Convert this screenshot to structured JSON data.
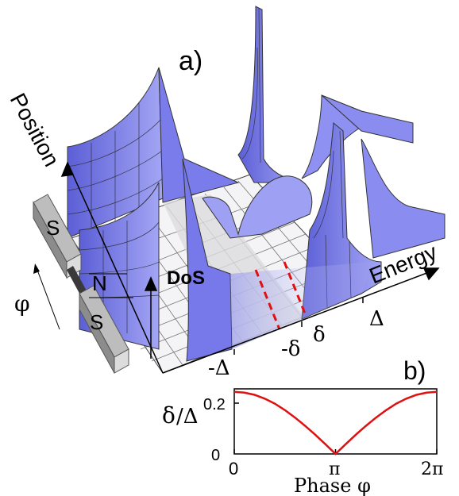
{
  "panel_a": {
    "label": "a)",
    "axis_position": "Position",
    "axis_energy": "Energy",
    "axis_dos": "DoS",
    "energy_ticks": [
      "-Δ",
      "-δ",
      "δ",
      "Δ"
    ],
    "device": {
      "top": "S",
      "middle": "N",
      "bottom": "S",
      "phase": "φ"
    }
  },
  "panel_b": {
    "label": "b)",
    "ylabel_num": "δ",
    "ylabel_den": "/Δ",
    "xlabel": "Phase φ",
    "xticks": [
      "0",
      "π",
      "2π"
    ],
    "yticks": [
      "0",
      "0.2"
    ]
  },
  "colors": {
    "surface": "#8a8cf0",
    "surface_dark": "#6063d8",
    "gap": "#d8d8dc",
    "red": "#e01010"
  },
  "chart_data": {
    "type": "line",
    "title": "",
    "xlabel": "Phase φ",
    "ylabel": "δ/Δ",
    "xlim": [
      0,
      6.2832
    ],
    "ylim": [
      0,
      0.22
    ],
    "series": [
      {
        "x": [
          0,
          0.3142,
          0.6283,
          0.9425,
          1.2566,
          1.5708,
          1.885,
          2.1991,
          2.5133,
          2.8274,
          3.1416,
          3.4558,
          3.7699,
          4.0841,
          4.3982,
          4.7124,
          5.0265,
          5.3407,
          5.6549,
          5.969,
          6.2832
        ],
        "values": [
          0.21,
          0.207,
          0.2,
          0.187,
          0.17,
          0.148,
          0.123,
          0.095,
          0.065,
          0.033,
          0.0,
          0.033,
          0.065,
          0.095,
          0.123,
          0.148,
          0.17,
          0.187,
          0.2,
          0.207,
          0.21
        ]
      }
    ]
  }
}
